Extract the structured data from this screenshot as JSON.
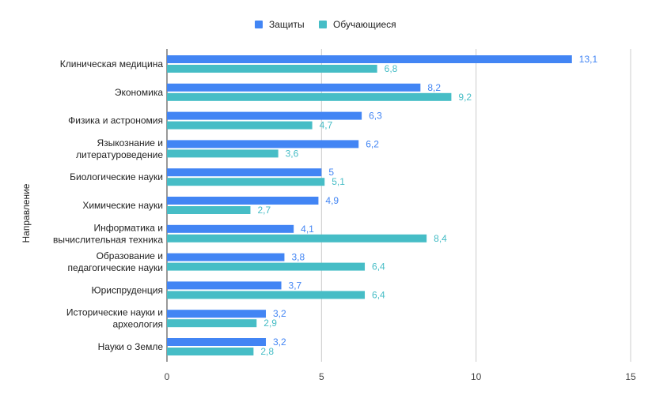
{
  "chart_data": {
    "type": "bar",
    "orientation": "horizontal",
    "title": "",
    "xlabel": "",
    "ylabel": "Направление",
    "xlim": [
      0,
      15
    ],
    "xticks": [
      0,
      5,
      10,
      15
    ],
    "grid": true,
    "legend_position": "top",
    "categories": [
      [
        "Клиническая медицина"
      ],
      [
        "Экономика"
      ],
      [
        "Физика и астрономия"
      ],
      [
        "Языкознание и",
        "литературоведение"
      ],
      [
        "Биологические науки"
      ],
      [
        "Химические науки"
      ],
      [
        "Информатика и",
        "вычислительная техника"
      ],
      [
        "Образование и",
        "педагогические науки"
      ],
      [
        "Юриспруденция"
      ],
      [
        "Исторические науки и",
        "археология"
      ],
      [
        "Науки о Земле"
      ]
    ],
    "series": [
      {
        "name": "Защиты",
        "color": "#4285F4",
        "values": [
          13.1,
          8.2,
          6.3,
          6.2,
          5,
          4.9,
          4.1,
          3.8,
          3.7,
          3.2,
          3.2
        ],
        "labels": [
          "13,1",
          "8,2",
          "6,3",
          "6,2",
          "5",
          "4,9",
          "4,1",
          "3,8",
          "3,7",
          "3,2",
          "3,2"
        ]
      },
      {
        "name": "Обучающиеся",
        "color": "#46BDC6",
        "values": [
          6.8,
          9.2,
          4.7,
          3.6,
          5.1,
          2.7,
          8.4,
          6.4,
          6.4,
          2.9,
          2.8
        ],
        "labels": [
          "6,8",
          "9,2",
          "4,7",
          "3,6",
          "5,1",
          "2,7",
          "8,4",
          "6,4",
          "6,4",
          "2,9",
          "2,8"
        ]
      }
    ]
  }
}
